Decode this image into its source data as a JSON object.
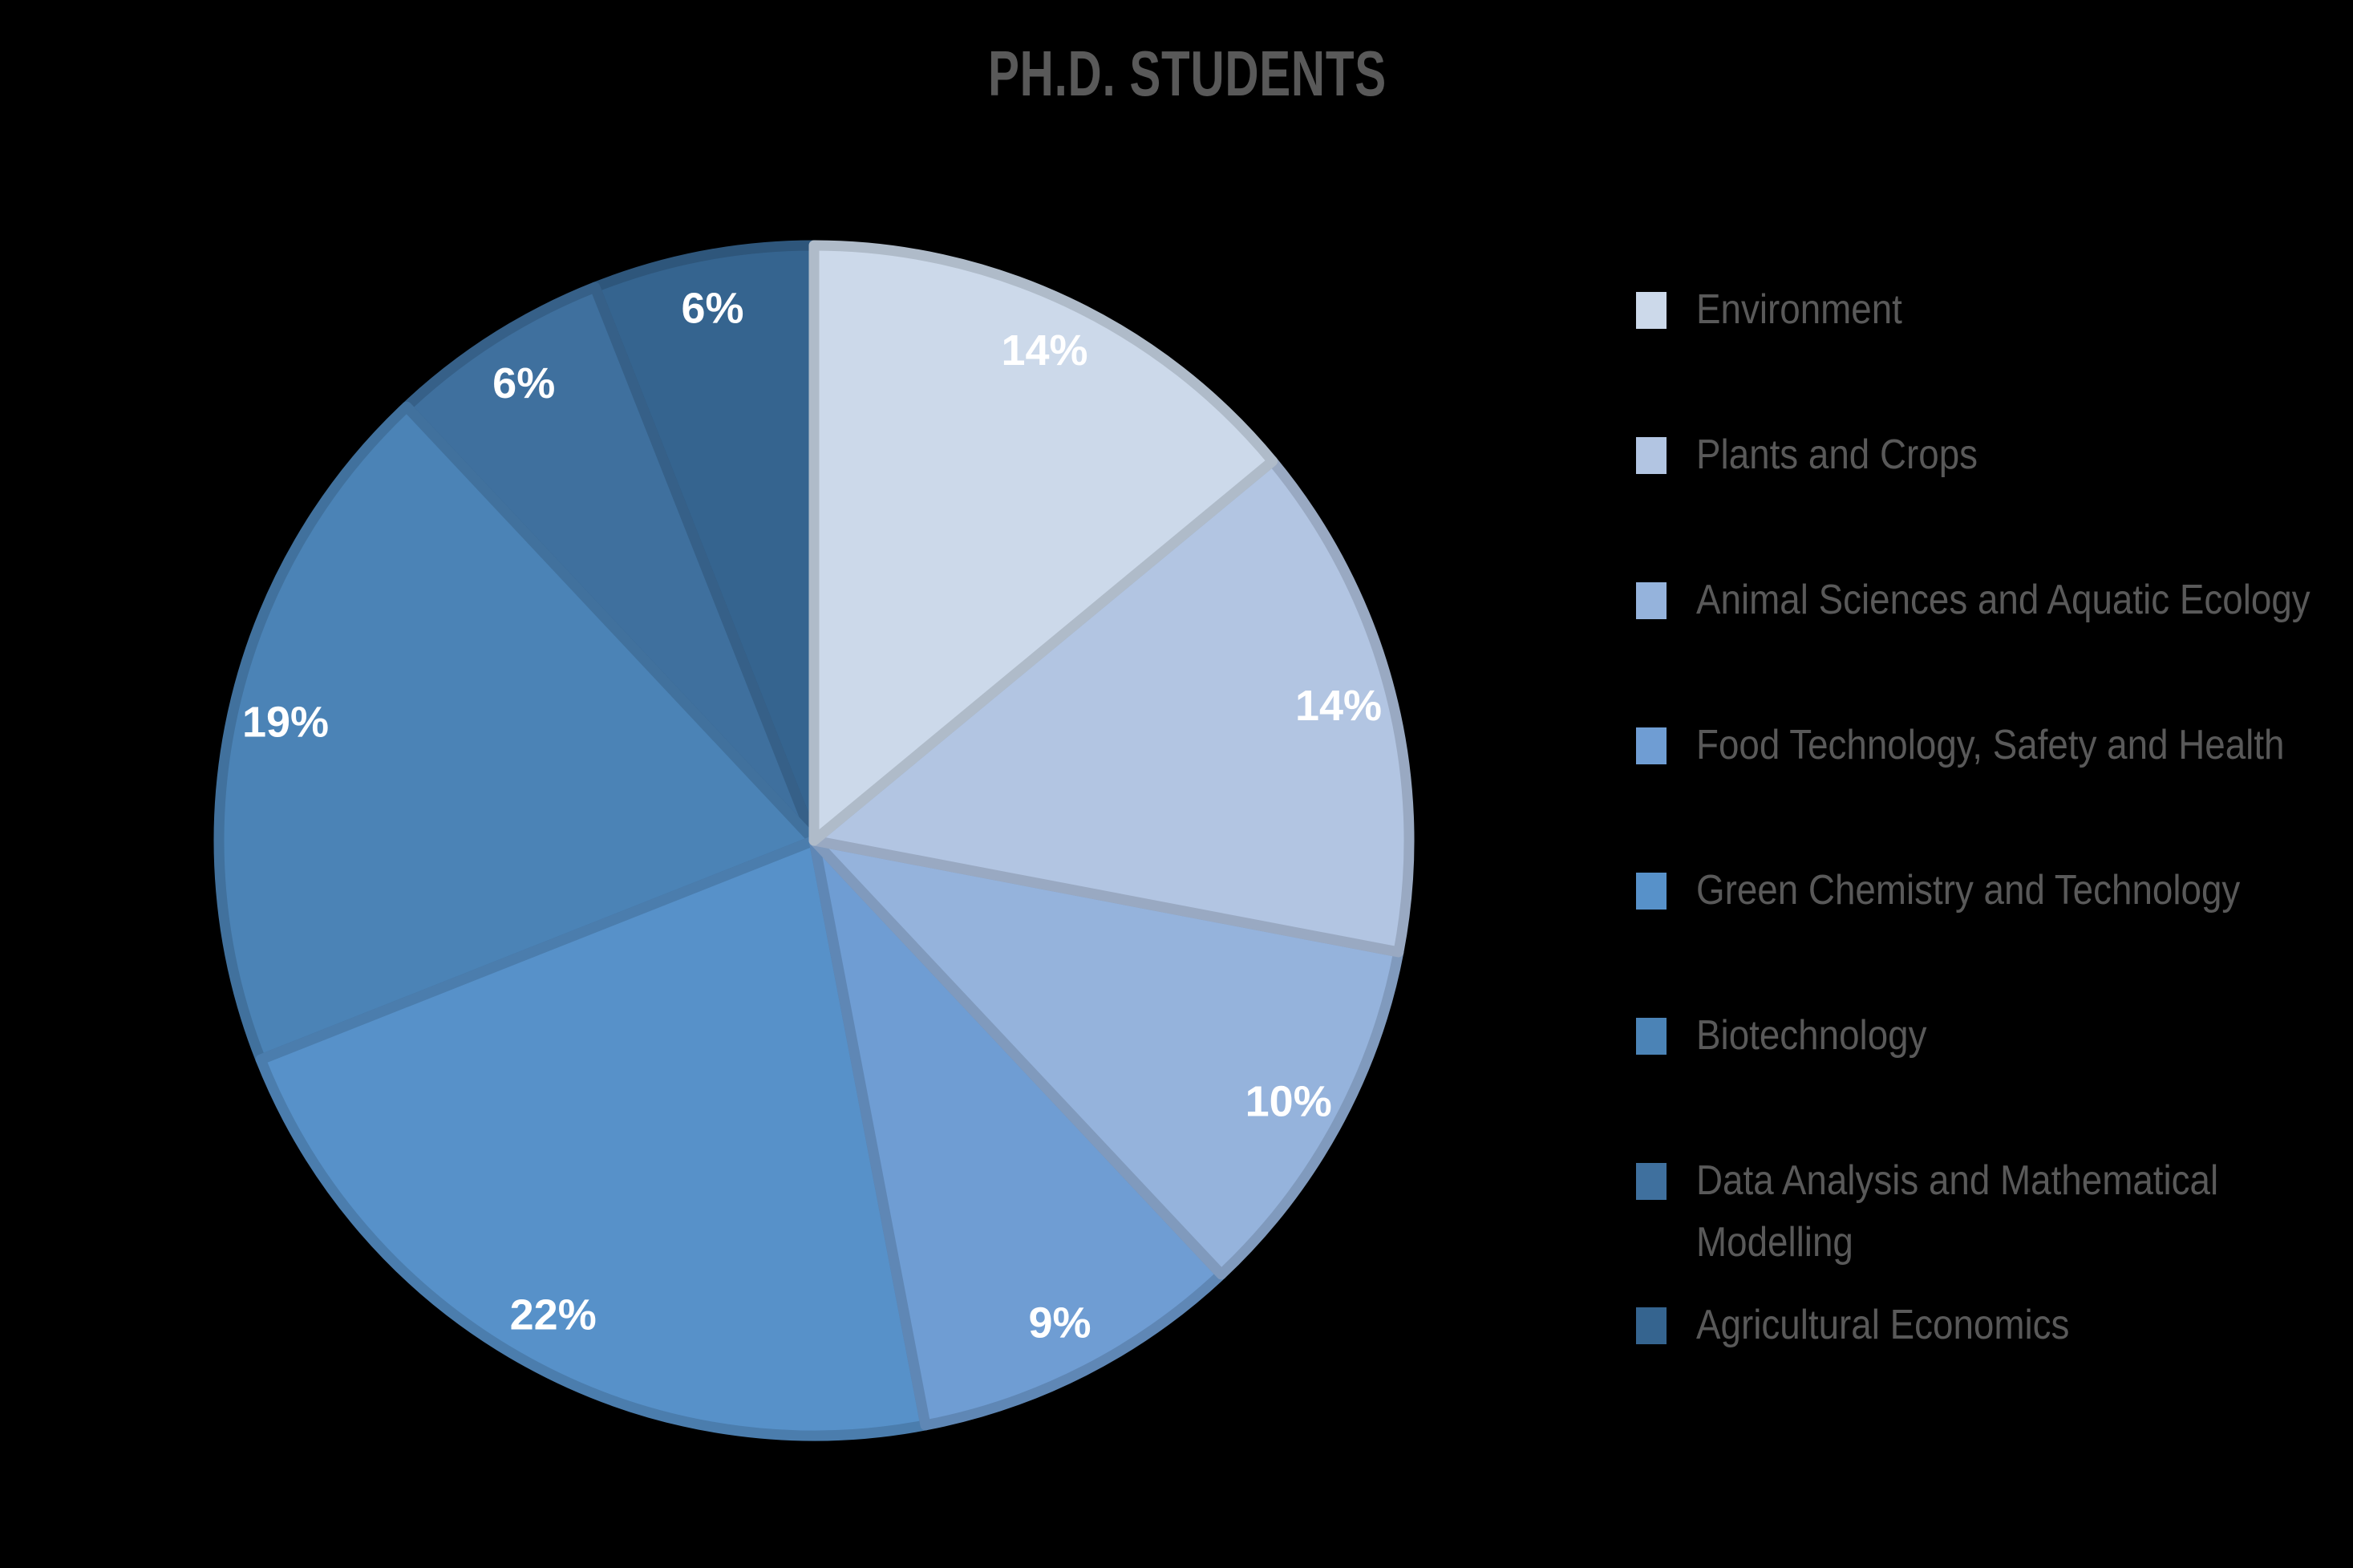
{
  "title": "PH.D. STUDENTS",
  "background_color": "#000000",
  "chart_data": {
    "type": "pie",
    "title": "PH.D. STUDENTS",
    "categories": [
      "Environment",
      "Plants and Crops",
      "Animal Sciences and Aquatic Ecology",
      "Food Technology, Safety and Health",
      "Green Chemistry and Technology",
      "Biotechnology",
      "Data Analysis and Mathematical Modelling",
      "Agricultural Economics"
    ],
    "values": [
      14,
      14,
      10,
      9,
      22,
      19,
      6,
      6
    ],
    "value_labels": [
      "14%",
      "14%",
      "10%",
      "9%",
      "22%",
      "19%",
      "6%",
      "6%"
    ],
    "colors": [
      "#ccd9ea",
      "#b2c5e2",
      "#95b3dc",
      "#6f9dd3",
      "#5791c9",
      "#4b83b6",
      "#3f709e",
      "#35648f"
    ],
    "unit": "percent",
    "start_angle_deg": 0,
    "direction": "clockwise",
    "data_labels_position": "inside-end",
    "data_label_color": "#ffffff",
    "legend_position": "right",
    "title_color": "#595959",
    "legend_text_color": "#595959",
    "grid": "off"
  },
  "legend": {
    "items": [
      {
        "label": "Environment",
        "color": "#ccd9ea"
      },
      {
        "label": "Plants and Crops",
        "color": "#b2c5e2"
      },
      {
        "label": "Animal Sciences and Aquatic Ecology",
        "color": "#95b3dc"
      },
      {
        "label": "Food Technology, Safety and Health",
        "color": "#6f9dd3"
      },
      {
        "label": "Green Chemistry and Technology",
        "color": "#5791c9"
      },
      {
        "label": "Biotechnology",
        "color": "#4b83b6"
      },
      {
        "label": "Data Analysis and Mathematical\nModelling",
        "color": "#3f709e"
      },
      {
        "label": "Agricultural Economics",
        "color": "#35648f"
      }
    ]
  }
}
